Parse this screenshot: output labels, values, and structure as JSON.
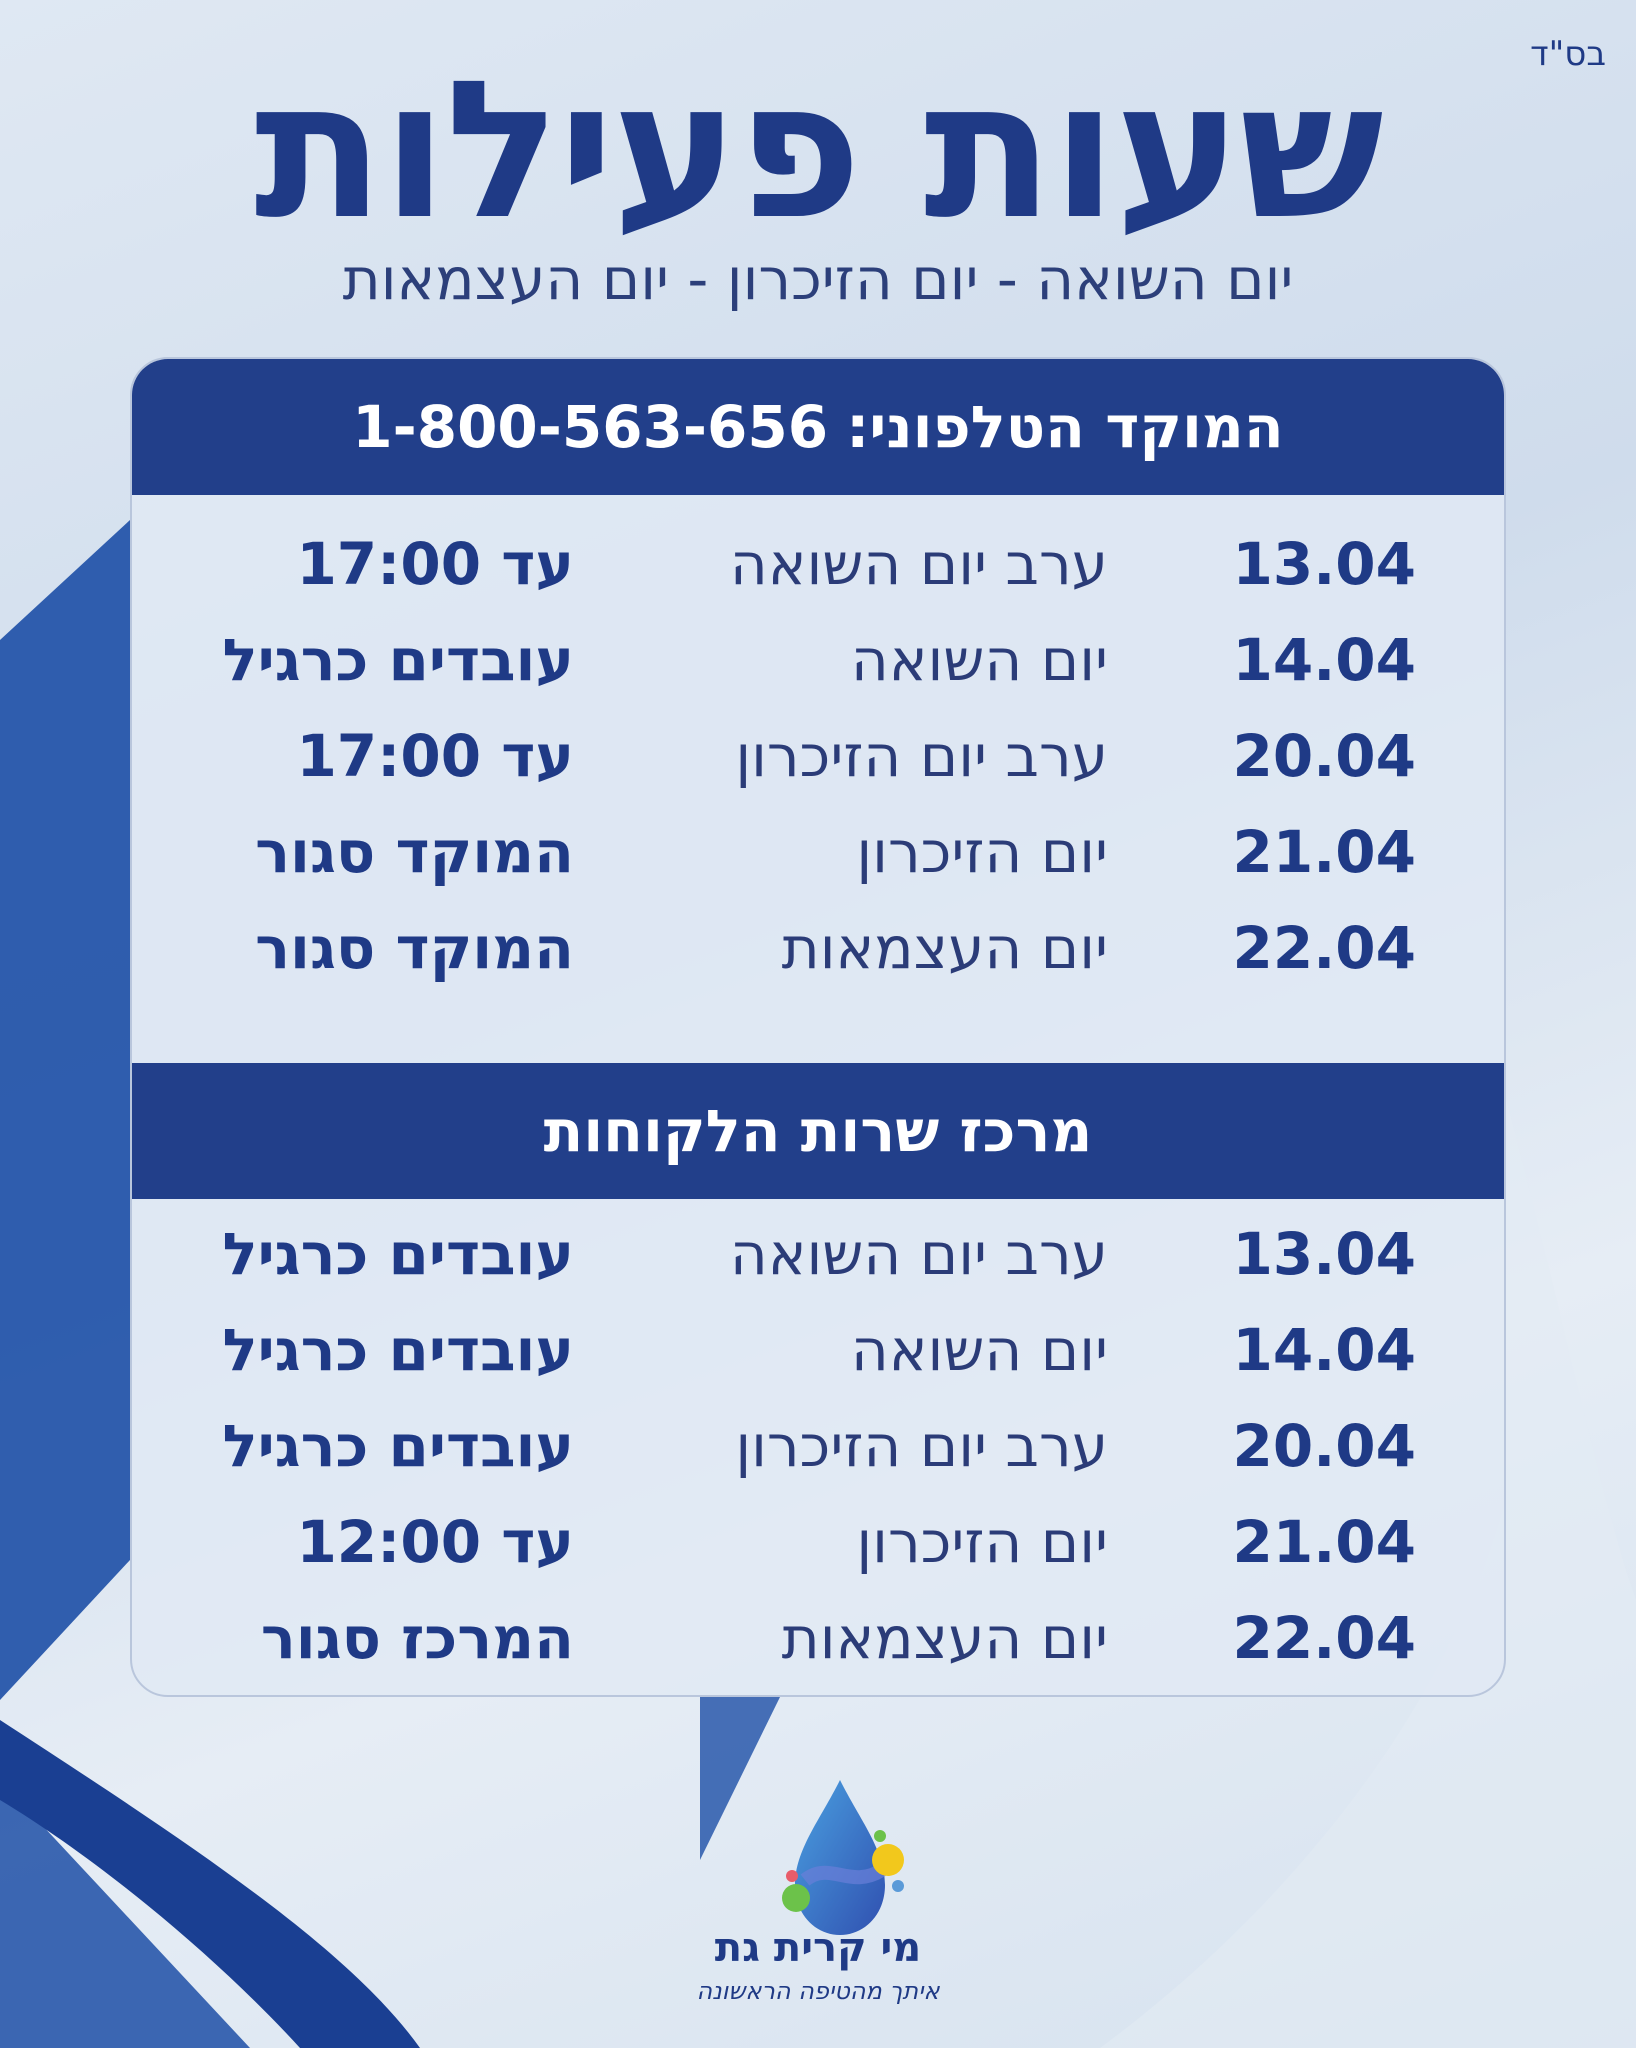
{
  "corner_mark": "בס\"ד",
  "title": "שעות פעילות",
  "subtitle": "יום השואה - יום הזיכרון - יום העצמאות",
  "colors": {
    "navy": "#223f8a",
    "text": "#1f3a86"
  },
  "sections": [
    {
      "label": "המוקד הטלפוני:",
      "phone": "1-800-563-656",
      "rows": [
        {
          "date": "13.04",
          "day": "ערב יום השואה",
          "status": "עד 17:00"
        },
        {
          "date": "14.04",
          "day": "יום השואה",
          "status": "עובדים כרגיל"
        },
        {
          "date": "20.04",
          "day": "ערב יום הזיכרון",
          "status": "עד 17:00"
        },
        {
          "date": "21.04",
          "day": "יום הזיכרון",
          "status": "המוקד סגור"
        },
        {
          "date": "22.04",
          "day": "יום העצמאות",
          "status": "המוקד סגור"
        }
      ]
    },
    {
      "label": "מרכז שרות הלקוחות",
      "rows": [
        {
          "date": "13.04",
          "day": "ערב יום השואה",
          "status": "עובדים כרגיל"
        },
        {
          "date": "14.04",
          "day": "יום השואה",
          "status": "עובדים כרגיל"
        },
        {
          "date": "20.04",
          "day": "ערב יום הזיכרון",
          "status": "עובדים כרגיל"
        },
        {
          "date": "21.04",
          "day": "יום הזיכרון",
          "status": "עד 12:00"
        },
        {
          "date": "22.04",
          "day": "יום העצמאות",
          "status": "המרכז סגור"
        }
      ]
    }
  ],
  "logo": {
    "brand": "מי קרית גת",
    "slogan": "איתך מהטיפה הראשונה",
    "icon": "water-drop-logo"
  }
}
